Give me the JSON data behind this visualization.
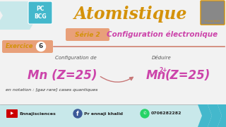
{
  "bg_color": "#f2f2f2",
  "title": "Atomistique",
  "title_color": "#d4920a",
  "serie_label": "Série 2",
  "serie_bg": "#e8a07a",
  "serie_text_color": "#d4920a",
  "config_elec_label": "Configuration électronique",
  "config_elec_color": "#cc44aa",
  "exercice_label": "Exercice",
  "exercice_num": "6",
  "exercice_bg": "#e8a07a",
  "exercice_text_color": "#d4920a",
  "pc_bcg_text": "PC\nBCG",
  "pc_bcg_bg": "#44b8cc",
  "chevron_color": "#c8e8ea",
  "config_de_label": "Configuration de",
  "deduire_label": "Déduire",
  "mn_label": "Mn (Z=25)",
  "mn_color": "#cc44aa",
  "notation_label": "en notation : [gaz rare] cases quantiques",
  "footer_bg": "#c8e8ea",
  "footer_yt": "Ennajisciences",
  "footer_fb": "Pr ennaji khalid",
  "footer_phone": "0706282282",
  "footer_color": "#222222",
  "arrow_color": "#c87878",
  "line_color": "#d08070"
}
